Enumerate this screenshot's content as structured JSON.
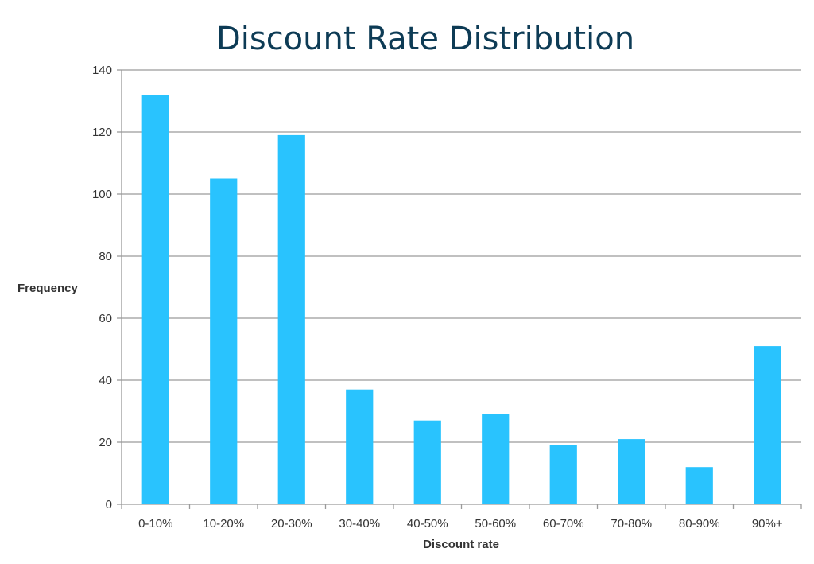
{
  "chart_data": {
    "type": "bar",
    "title": "Discount Rate Distribution",
    "xlabel": "Discount rate",
    "ylabel": "Frequency",
    "categories": [
      "0-10%",
      "10-20%",
      "20-30%",
      "30-40%",
      "40-50%",
      "50-60%",
      "60-70%",
      "70-80%",
      "80-90%",
      "90%+"
    ],
    "values": [
      132,
      105,
      119,
      37,
      27,
      29,
      19,
      21,
      12,
      51
    ],
    "ylim": [
      0,
      140
    ],
    "yticks": [
      0,
      20,
      40,
      60,
      80,
      100,
      120,
      140
    ],
    "grid": true,
    "legend": "none",
    "bar_color": "#29c3fe"
  }
}
